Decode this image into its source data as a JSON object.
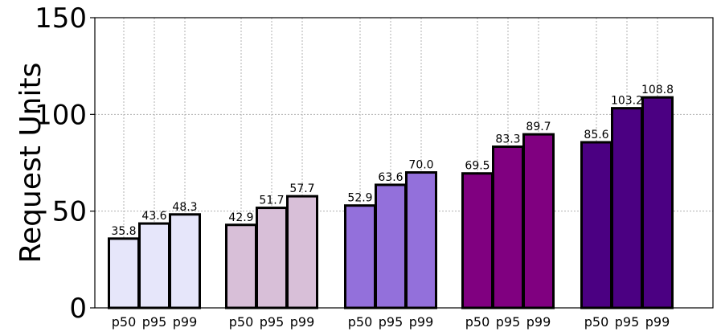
{
  "chart_data": {
    "type": "bar",
    "ylabel": "Request Units",
    "ylim": [
      0,
      150
    ],
    "yticks": [
      0,
      50,
      100,
      150
    ],
    "grid": true,
    "groups": [
      {
        "color": "#e6e6fa",
        "bars": [
          {
            "label": "p50",
            "value": 35.8,
            "text": "35.8"
          },
          {
            "label": "p95",
            "value": 43.6,
            "text": "43.6"
          },
          {
            "label": "p99",
            "value": 48.3,
            "text": "48.3"
          }
        ]
      },
      {
        "color": "#d8bfd8",
        "bars": [
          {
            "label": "p50",
            "value": 42.9,
            "text": "42.9"
          },
          {
            "label": "p95",
            "value": 51.7,
            "text": "51.7"
          },
          {
            "label": "p99",
            "value": 57.7,
            "text": "57.7"
          }
        ]
      },
      {
        "color": "#9370db",
        "bars": [
          {
            "label": "p50",
            "value": 52.9,
            "text": "52.9"
          },
          {
            "label": "p95",
            "value": 63.6,
            "text": "63.6"
          },
          {
            "label": "p99",
            "value": 70.0,
            "text": "70.0"
          }
        ]
      },
      {
        "color": "#800080",
        "bars": [
          {
            "label": "p50",
            "value": 69.5,
            "text": "69.5"
          },
          {
            "label": "p95",
            "value": 83.3,
            "text": "83.3"
          },
          {
            "label": "p99",
            "value": 89.7,
            "text": "89.7"
          }
        ]
      },
      {
        "color": "#4b0082",
        "bars": [
          {
            "label": "p50",
            "value": 85.6,
            "text": "85.6"
          },
          {
            "label": "p95",
            "value": 103.2,
            "text": "103.2"
          },
          {
            "label": "p99",
            "value": 108.8,
            "text": "108.8"
          }
        ]
      }
    ]
  }
}
